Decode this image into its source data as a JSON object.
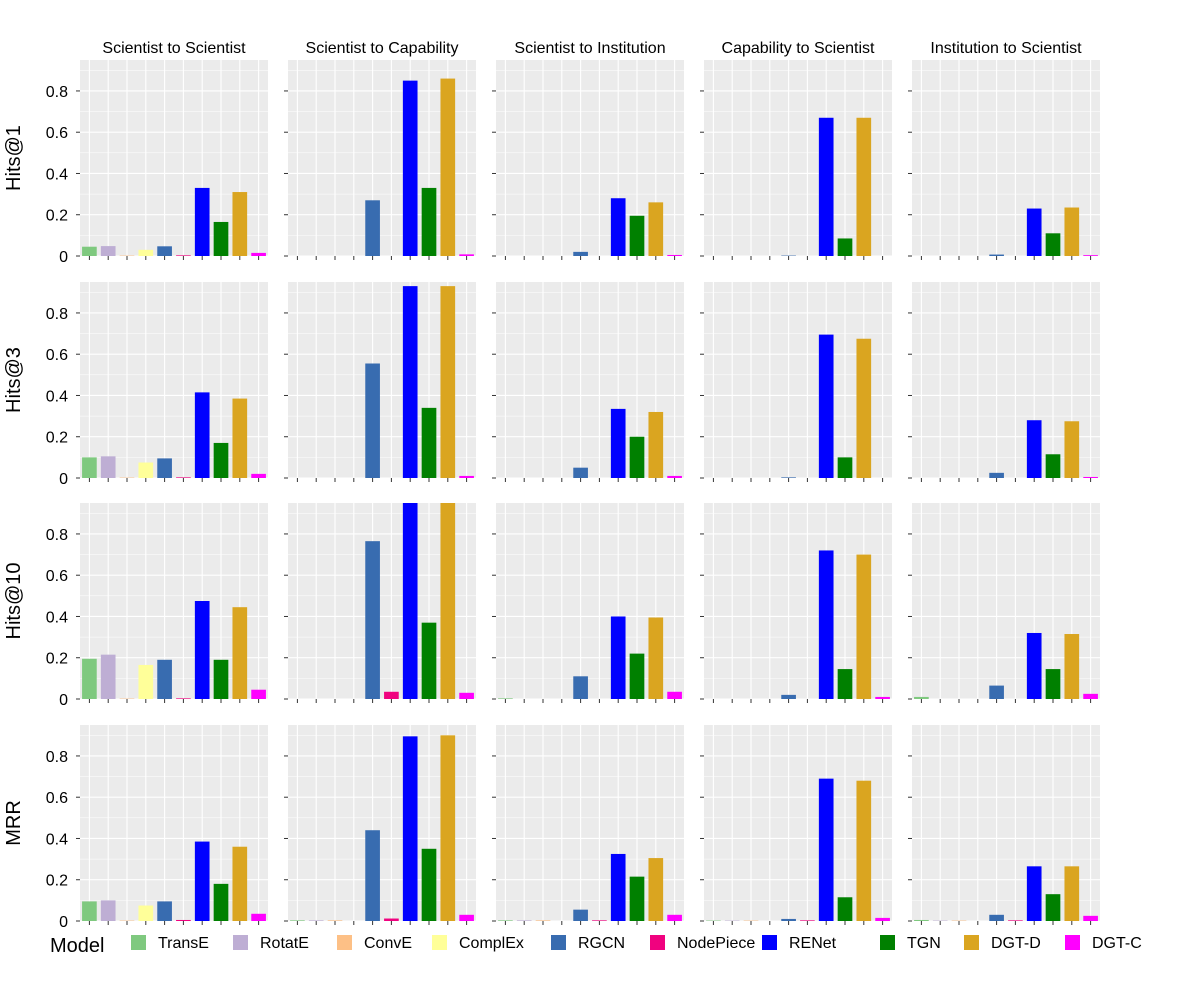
{
  "chart_data": {
    "type": "bar",
    "layout": "facet-grid",
    "categories": [
      "TransE",
      "RotatE",
      "ConvE",
      "ComplEx",
      "RGCN",
      "NodePiece",
      "RENet",
      "TGN",
      "DGT-D",
      "DGT-C"
    ],
    "colors": {
      "TransE": "#7fc97f",
      "RotatE": "#beaed4",
      "ConvE": "#fdc086",
      "ComplEx": "#ffff99",
      "RGCN": "#386cb0",
      "NodePiece": "#f0027f",
      "RENet": "#0000ff",
      "TGN": "#008000",
      "DGT-D": "#daa520",
      "DGT-C": "#ff00ff"
    },
    "panel_background": "#ebebeb",
    "grid": true,
    "columns": [
      "Scientist to Scientist",
      "Scientist to Capability",
      "Scientist to Institution",
      "Capability to Scientist",
      "Institution to Scientist"
    ],
    "rows": [
      "Hits@1",
      "Hits@3",
      "Hits@10",
      "MRR"
    ],
    "ylim": [
      0,
      0.95
    ],
    "yticks": [
      0,
      0.2,
      0.4,
      0.6,
      0.8
    ],
    "ytick_labels": [
      "0",
      "0.2",
      "0.4",
      "0.6",
      "0.8"
    ],
    "legend": {
      "title": "Model",
      "position": "bottom"
    },
    "values": [
      [
        [
          0.045,
          0.048,
          0.002,
          0.03,
          0.047,
          0.003,
          0.33,
          0.165,
          0.31,
          0.015
        ],
        [
          0,
          0,
          0,
          0,
          0.27,
          0,
          0.85,
          0.33,
          0.86,
          0.008
        ],
        [
          0,
          0,
          0,
          0,
          0.02,
          0,
          0.28,
          0.195,
          0.26,
          0.005
        ],
        [
          0,
          0,
          0,
          0,
          0.002,
          0,
          0.67,
          0.085,
          0.67,
          0
        ],
        [
          0,
          0,
          0,
          0,
          0.007,
          0,
          0.23,
          0.11,
          0.235,
          0.004
        ]
      ],
      [
        [
          0.1,
          0.105,
          0.002,
          0.075,
          0.095,
          0.003,
          0.415,
          0.17,
          0.385,
          0.02
        ],
        [
          0,
          0,
          0,
          0,
          0.555,
          0,
          0.93,
          0.34,
          0.93,
          0.01
        ],
        [
          0,
          0,
          0,
          0,
          0.05,
          0,
          0.335,
          0.2,
          0.32,
          0.01
        ],
        [
          0,
          0,
          0,
          0,
          0.003,
          0,
          0.695,
          0.1,
          0.675,
          0
        ],
        [
          0,
          0,
          0,
          0,
          0.025,
          0,
          0.28,
          0.115,
          0.275,
          0.005
        ]
      ],
      [
        [
          0.195,
          0.215,
          0.002,
          0.165,
          0.19,
          0.003,
          0.475,
          0.19,
          0.445,
          0.045
        ],
        [
          0,
          0,
          0,
          0,
          0.765,
          0.035,
          0.96,
          0.37,
          0.96,
          0.03
        ],
        [
          0.003,
          0,
          0,
          0,
          0.11,
          0,
          0.4,
          0.22,
          0.395,
          0.035
        ],
        [
          0,
          0,
          0,
          0,
          0.02,
          0,
          0.72,
          0.145,
          0.7,
          0.01
        ],
        [
          0.01,
          0,
          0,
          0,
          0.065,
          0,
          0.32,
          0.145,
          0.315,
          0.025
        ]
      ],
      [
        [
          0.095,
          0.1,
          0.002,
          0.075,
          0.095,
          0.005,
          0.385,
          0.18,
          0.36,
          0.035
        ],
        [
          0.003,
          0.003,
          0.003,
          0,
          0.44,
          0.012,
          0.895,
          0.35,
          0.9,
          0.03
        ],
        [
          0.003,
          0.003,
          0.003,
          0,
          0.055,
          0.003,
          0.325,
          0.215,
          0.305,
          0.03
        ],
        [
          0.002,
          0.002,
          0.002,
          0,
          0.01,
          0.003,
          0.69,
          0.115,
          0.68,
          0.015
        ],
        [
          0.005,
          0.002,
          0.002,
          0,
          0.03,
          0.003,
          0.265,
          0.13,
          0.265,
          0.025
        ]
      ]
    ]
  }
}
